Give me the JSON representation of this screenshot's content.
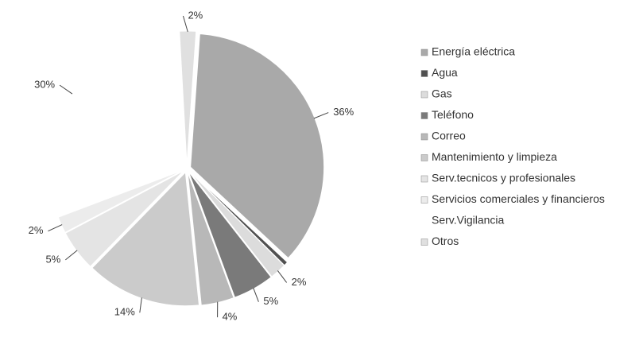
{
  "chart_data": {
    "type": "pie",
    "categories": [
      "Energía eléctrica",
      "Agua",
      "Gas",
      "Teléfono",
      "Correo",
      "Mantenimiento y limpieza",
      "Serv.tecnicos y profesionales",
      "Servicios comerciales y financieros",
      "Serv.Vigilancia",
      "Otros"
    ],
    "values": [
      36,
      0.5,
      2,
      5,
      4,
      14,
      5,
      2,
      30,
      2
    ],
    "value_labels": [
      "36%",
      null,
      "2%",
      "5%",
      "4%",
      "14%",
      "5%",
      "2%",
      "30%",
      "2%"
    ],
    "colors": [
      "#a9a9a9",
      "#505050",
      "#dcdcdc",
      "#7a7a7a",
      "#b8b8b8",
      "#cbcbcb",
      "#e4e4e4",
      "#ececec",
      "#ffffff",
      "#e0e0e0"
    ],
    "legend": "right"
  }
}
